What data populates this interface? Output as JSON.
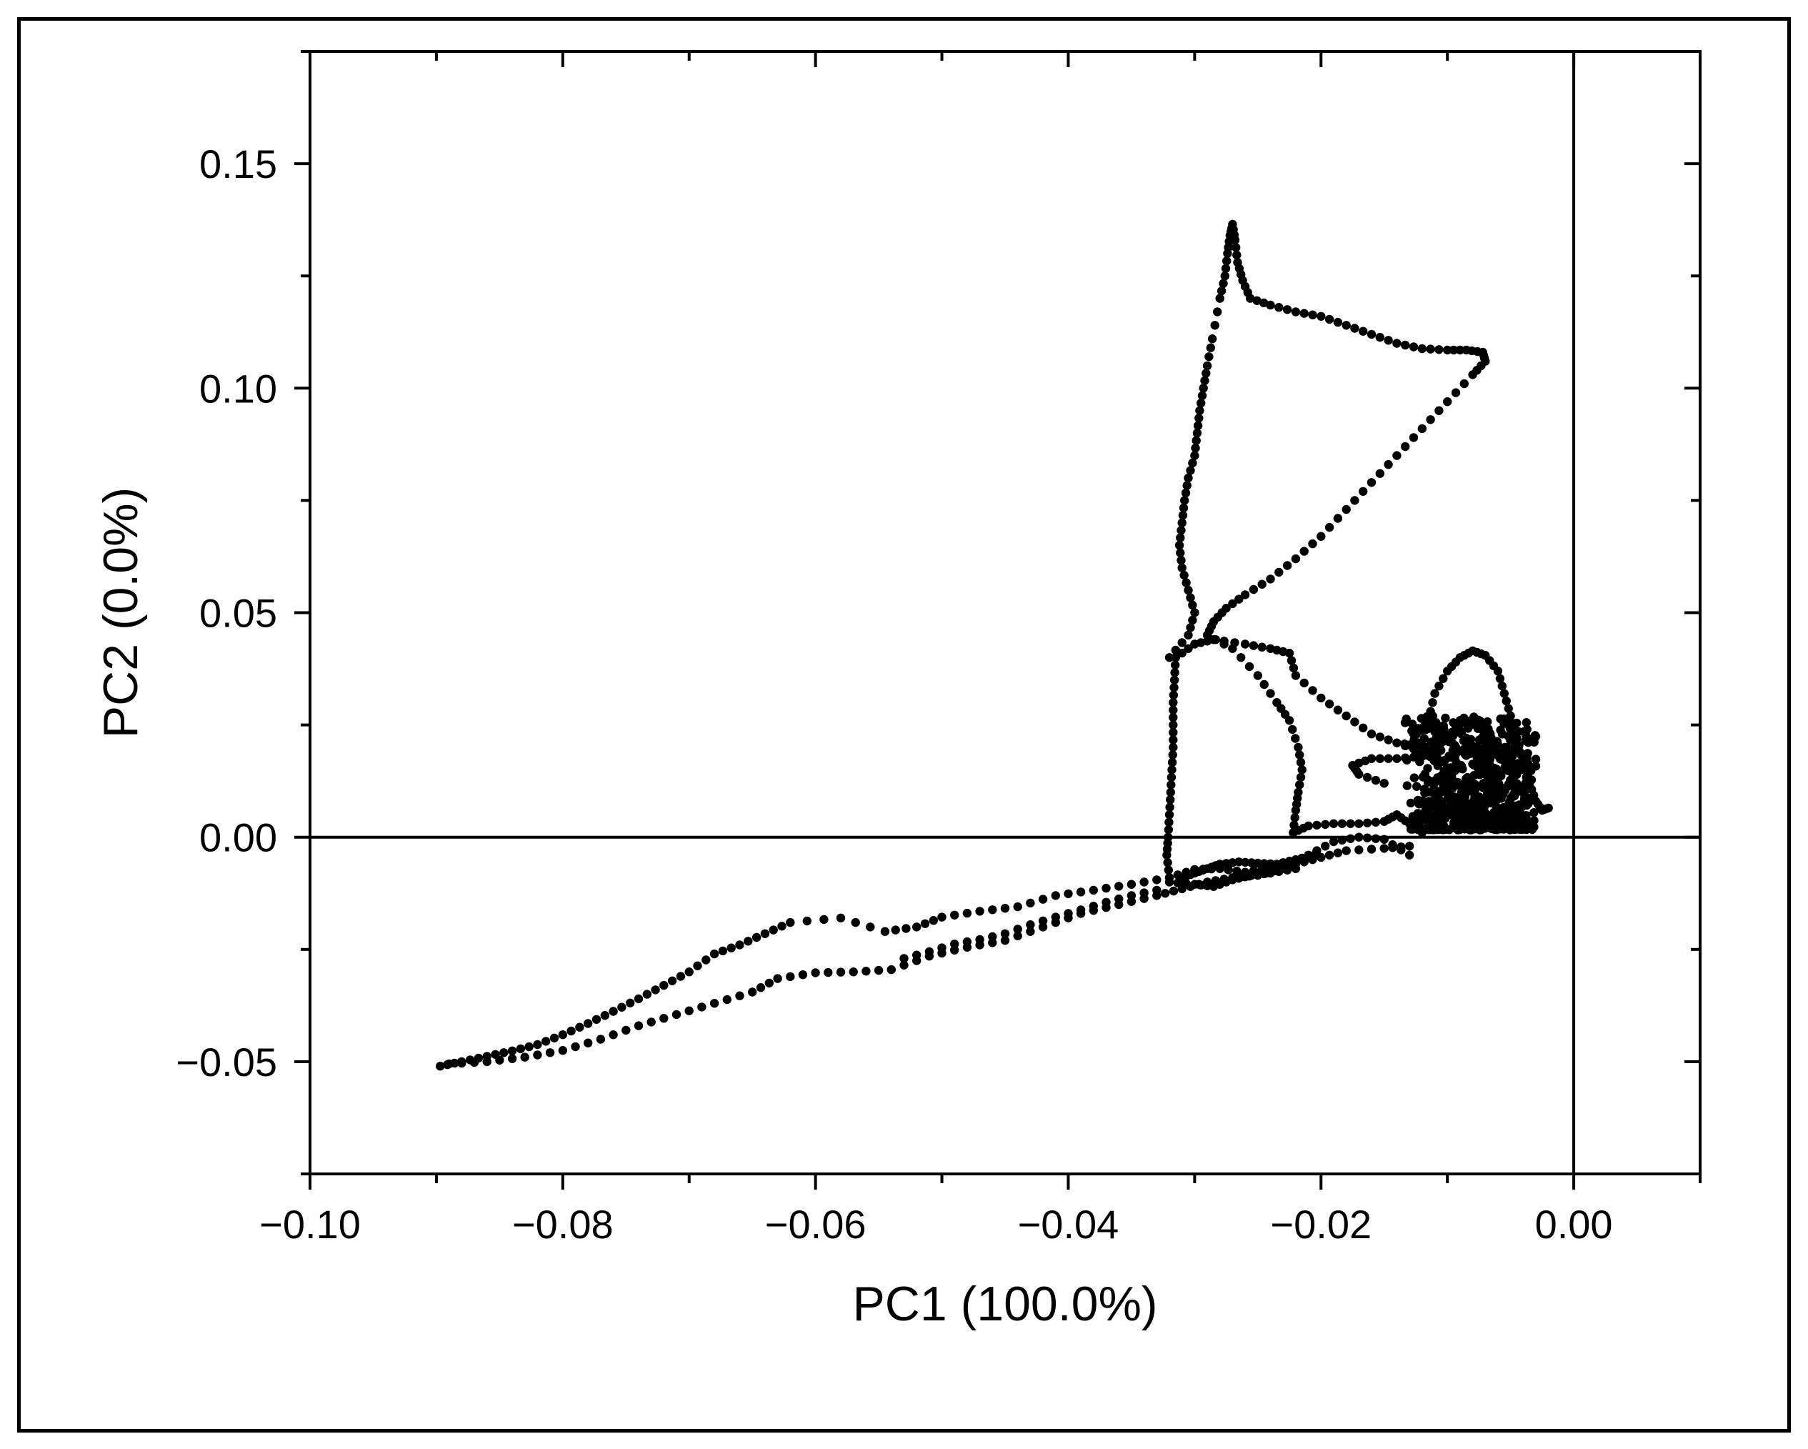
{
  "chart_data": {
    "type": "scatter",
    "title": "",
    "xlabel": "PC1 (100.0%)",
    "ylabel": "PC2 (0.0%)",
    "xlim": [
      -0.1,
      0.01
    ],
    "ylim": [
      -0.075,
      0.175
    ],
    "xticks": [
      {
        "value": -0.1,
        "label": "−0.10"
      },
      {
        "value": -0.08,
        "label": "−0.08"
      },
      {
        "value": -0.06,
        "label": "−0.06"
      },
      {
        "value": -0.04,
        "label": "−0.04"
      },
      {
        "value": -0.02,
        "label": "−0.02"
      },
      {
        "value": 0.0,
        "label": "0.00"
      }
    ],
    "yticks": [
      {
        "value": -0.05,
        "label": "−0.05"
      },
      {
        "value": 0.0,
        "label": "0.00"
      },
      {
        "value": 0.05,
        "label": "0.05"
      },
      {
        "value": 0.1,
        "label": "0.10"
      },
      {
        "value": 0.15,
        "label": "0.15"
      }
    ],
    "x_minor_step": 0.01,
    "y_minor_step": 0.025,
    "reference_lines": {
      "x": 0,
      "y": 0
    },
    "grid": false,
    "marker_color": "#000000",
    "series": [
      {
        "path_points": [
          [
            -0.0897,
            -0.051
          ],
          [
            -0.088,
            -0.05
          ],
          [
            -0.086,
            -0.0488
          ],
          [
            -0.084,
            -0.0476
          ],
          [
            -0.082,
            -0.0462
          ],
          [
            -0.08,
            -0.044
          ],
          [
            -0.078,
            -0.0415
          ],
          [
            -0.076,
            -0.0388
          ],
          [
            -0.074,
            -0.036
          ],
          [
            -0.072,
            -0.033
          ],
          [
            -0.07,
            -0.03
          ],
          [
            -0.068,
            -0.026
          ],
          [
            -0.066,
            -0.024
          ],
          [
            -0.064,
            -0.0215
          ],
          [
            -0.062,
            -0.019
          ],
          [
            -0.058,
            -0.018
          ],
          [
            -0.0545,
            -0.021
          ],
          [
            -0.052,
            -0.02
          ],
          [
            -0.05,
            -0.0178
          ],
          [
            -0.047,
            -0.0165
          ],
          [
            -0.044,
            -0.0155
          ],
          [
            -0.041,
            -0.013
          ],
          [
            -0.038,
            -0.0118
          ],
          [
            -0.035,
            -0.0105
          ],
          [
            -0.032,
            -0.009
          ],
          [
            -0.03,
            -0.0072
          ],
          [
            -0.028,
            -0.007
          ],
          [
            -0.026,
            -0.0078
          ],
          [
            -0.024,
            -0.0068
          ],
          [
            -0.022,
            -0.006
          ],
          [
            -0.02,
            -0.0045
          ],
          [
            -0.018,
            -0.003
          ],
          [
            -0.015,
            -0.0025
          ],
          [
            -0.013,
            -0.002
          ]
        ],
        "interp": 2
      },
      {
        "path_points": [
          [
            -0.089,
            -0.0505
          ],
          [
            -0.086,
            -0.05
          ],
          [
            -0.083,
            -0.049
          ],
          [
            -0.08,
            -0.0475
          ],
          [
            -0.077,
            -0.045
          ],
          [
            -0.074,
            -0.042
          ],
          [
            -0.071,
            -0.0395
          ],
          [
            -0.068,
            -0.037
          ],
          [
            -0.065,
            -0.0345
          ],
          [
            -0.063,
            -0.0315
          ],
          [
            -0.06,
            -0.0302
          ],
          [
            -0.057,
            -0.03
          ],
          [
            -0.054,
            -0.0295
          ],
          [
            -0.051,
            -0.0265
          ],
          [
            -0.048,
            -0.0245
          ],
          [
            -0.045,
            -0.023
          ],
          [
            -0.042,
            -0.02
          ],
          [
            -0.039,
            -0.017
          ],
          [
            -0.036,
            -0.015
          ],
          [
            -0.033,
            -0.013
          ],
          [
            -0.031,
            -0.0115
          ],
          [
            -0.029,
            -0.01
          ],
          [
            -0.027,
            -0.009
          ],
          [
            -0.025,
            -0.0085
          ],
          [
            -0.023,
            -0.007
          ],
          [
            -0.021,
            -0.004
          ],
          [
            -0.019,
            -0.001
          ],
          [
            -0.017,
            0.0
          ],
          [
            -0.015,
            -0.0005
          ],
          [
            -0.013,
            -0.004
          ]
        ],
        "interp": 2
      },
      {
        "path_points": [
          [
            -0.053,
            -0.027
          ],
          [
            -0.051,
            -0.0255
          ],
          [
            -0.049,
            -0.0238
          ],
          [
            -0.047,
            -0.0228
          ],
          [
            -0.045,
            -0.0215
          ],
          [
            -0.043,
            -0.0195
          ],
          [
            -0.041,
            -0.0178
          ],
          [
            -0.039,
            -0.0162
          ],
          [
            -0.037,
            -0.0145
          ],
          [
            -0.035,
            -0.013
          ],
          [
            -0.033,
            -0.0118
          ]
        ],
        "interp": 1
      },
      {
        "path_points": [
          [
            -0.032,
            -0.009
          ],
          [
            -0.0322,
            -0.004
          ],
          [
            -0.0321,
            0.0
          ],
          [
            -0.032,
            0.005
          ],
          [
            -0.0319,
            0.01
          ],
          [
            -0.0318,
            0.015
          ],
          [
            -0.0317,
            0.02
          ],
          [
            -0.0317,
            0.025
          ],
          [
            -0.0317,
            0.03
          ],
          [
            -0.0316,
            0.035
          ],
          [
            -0.0315,
            0.04
          ],
          [
            -0.03,
            0.043
          ],
          [
            -0.0285,
            0.044
          ],
          [
            -0.026,
            0.043
          ],
          [
            -0.024,
            0.042
          ],
          [
            -0.0225,
            0.041
          ],
          [
            -0.022,
            0.036
          ],
          [
            -0.02,
            0.031
          ],
          [
            -0.018,
            0.027
          ],
          [
            -0.016,
            0.023
          ],
          [
            -0.014,
            0.021
          ],
          [
            -0.012,
            0.019
          ]
        ],
        "interp": 2
      },
      {
        "path_points": [
          [
            -0.029,
            0.045
          ],
          [
            -0.027,
            0.042
          ],
          [
            -0.025,
            0.036
          ],
          [
            -0.0235,
            0.03
          ],
          [
            -0.0225,
            0.026
          ],
          [
            -0.0218,
            0.02
          ],
          [
            -0.0215,
            0.015
          ],
          [
            -0.0218,
            0.01
          ],
          [
            -0.022,
            0.006
          ],
          [
            -0.0222,
            0.001
          ]
        ],
        "interp": 2
      },
      {
        "path_points": [
          [
            -0.031,
            -0.009
          ],
          [
            -0.03,
            -0.008
          ],
          [
            -0.029,
            -0.007
          ],
          [
            -0.028,
            -0.006
          ],
          [
            -0.0265,
            -0.0055
          ],
          [
            -0.025,
            -0.0058
          ],
          [
            -0.0235,
            -0.006
          ],
          [
            -0.022,
            -0.005
          ],
          [
            -0.0205,
            -0.004
          ]
        ],
        "interp": 2
      },
      {
        "path_points": [
          [
            -0.032,
            -0.01
          ],
          [
            -0.03,
            -0.0105
          ],
          [
            -0.0285,
            -0.011
          ],
          [
            -0.027,
            -0.0095
          ],
          [
            -0.0255,
            -0.0085
          ],
          [
            -0.024,
            -0.008
          ],
          [
            -0.022,
            -0.007
          ]
        ],
        "interp": 2
      },
      {
        "path_points": [
          [
            -0.0222,
            0.001
          ],
          [
            -0.021,
            0.0025
          ],
          [
            -0.019,
            0.003
          ],
          [
            -0.017,
            0.003
          ],
          [
            -0.015,
            0.0035
          ],
          [
            -0.014,
            0.005
          ],
          [
            -0.013,
            0.003
          ],
          [
            -0.012,
            0.001
          ]
        ],
        "interp": 2
      },
      {
        "path_points": [
          [
            -0.015,
            0.012
          ],
          [
            -0.017,
            0.014
          ],
          [
            -0.0175,
            0.016
          ],
          [
            -0.016,
            0.0175
          ],
          [
            -0.014,
            0.0175
          ],
          [
            -0.012,
            0.018
          ],
          [
            -0.011,
            0.02
          ],
          [
            -0.01,
            0.022
          ],
          [
            -0.009,
            0.026
          ]
        ],
        "interp": 2
      },
      {
        "path_points": [
          [
            -0.032,
            0.04
          ],
          [
            -0.0305,
            0.045
          ],
          [
            -0.03,
            0.05
          ],
          [
            -0.0305,
            0.055
          ],
          [
            -0.031,
            0.06
          ],
          [
            -0.0312,
            0.065
          ],
          [
            -0.031,
            0.07
          ],
          [
            -0.0308,
            0.075
          ],
          [
            -0.0305,
            0.08
          ],
          [
            -0.03,
            0.085
          ],
          [
            -0.0298,
            0.09
          ],
          [
            -0.0296,
            0.095
          ],
          [
            -0.0293,
            0.1
          ],
          [
            -0.029,
            0.105
          ],
          [
            -0.0286,
            0.111
          ],
          [
            -0.028,
            0.12
          ],
          [
            -0.0276,
            0.125
          ],
          [
            -0.0274,
            0.13
          ],
          [
            -0.0272,
            0.134
          ],
          [
            -0.027,
            0.1365
          ],
          [
            -0.0268,
            0.133
          ],
          [
            -0.0266,
            0.128
          ],
          [
            -0.0262,
            0.124
          ],
          [
            -0.0256,
            0.12
          ],
          [
            -0.024,
            0.1185
          ],
          [
            -0.022,
            0.117
          ],
          [
            -0.02,
            0.116
          ],
          [
            -0.018,
            0.114
          ],
          [
            -0.016,
            0.112
          ],
          [
            -0.014,
            0.11
          ],
          [
            -0.012,
            0.1088
          ],
          [
            -0.01,
            0.1085
          ],
          [
            -0.0085,
            0.1085
          ],
          [
            -0.0072,
            0.108
          ],
          [
            -0.007,
            0.106
          ],
          [
            -0.008,
            0.103
          ],
          [
            -0.01,
            0.097
          ],
          [
            -0.012,
            0.091
          ],
          [
            -0.014,
            0.085
          ],
          [
            -0.016,
            0.079
          ],
          [
            -0.018,
            0.073
          ],
          [
            -0.02,
            0.067
          ],
          [
            -0.022,
            0.062
          ],
          [
            -0.024,
            0.0575
          ],
          [
            -0.026,
            0.054
          ],
          [
            -0.0275,
            0.051
          ],
          [
            -0.0285,
            0.048
          ],
          [
            -0.029,
            0.045
          ]
        ],
        "interp": 2
      },
      {
        "path_points": [
          [
            -0.012,
            0.02
          ],
          [
            -0.0115,
            0.026
          ],
          [
            -0.011,
            0.032
          ],
          [
            -0.01,
            0.037
          ],
          [
            -0.009,
            0.04
          ],
          [
            -0.008,
            0.0415
          ],
          [
            -0.007,
            0.0405
          ],
          [
            -0.006,
            0.037
          ],
          [
            -0.0055,
            0.032
          ],
          [
            -0.005,
            0.027
          ],
          [
            -0.0045,
            0.022
          ],
          [
            -0.004,
            0.017
          ],
          [
            -0.0035,
            0.012
          ],
          [
            -0.003,
            0.008
          ],
          [
            -0.0025,
            0.006
          ],
          [
            -0.002,
            0.0065
          ]
        ],
        "interp": 2
      }
    ],
    "cluster": {
      "description_free": true,
      "x_range": [
        -0.0145,
        -0.003
      ],
      "y_range": [
        -0.004,
        0.03
      ],
      "center": [
        -0.008,
        0.008
      ],
      "count": 700,
      "seed": 7
    }
  }
}
